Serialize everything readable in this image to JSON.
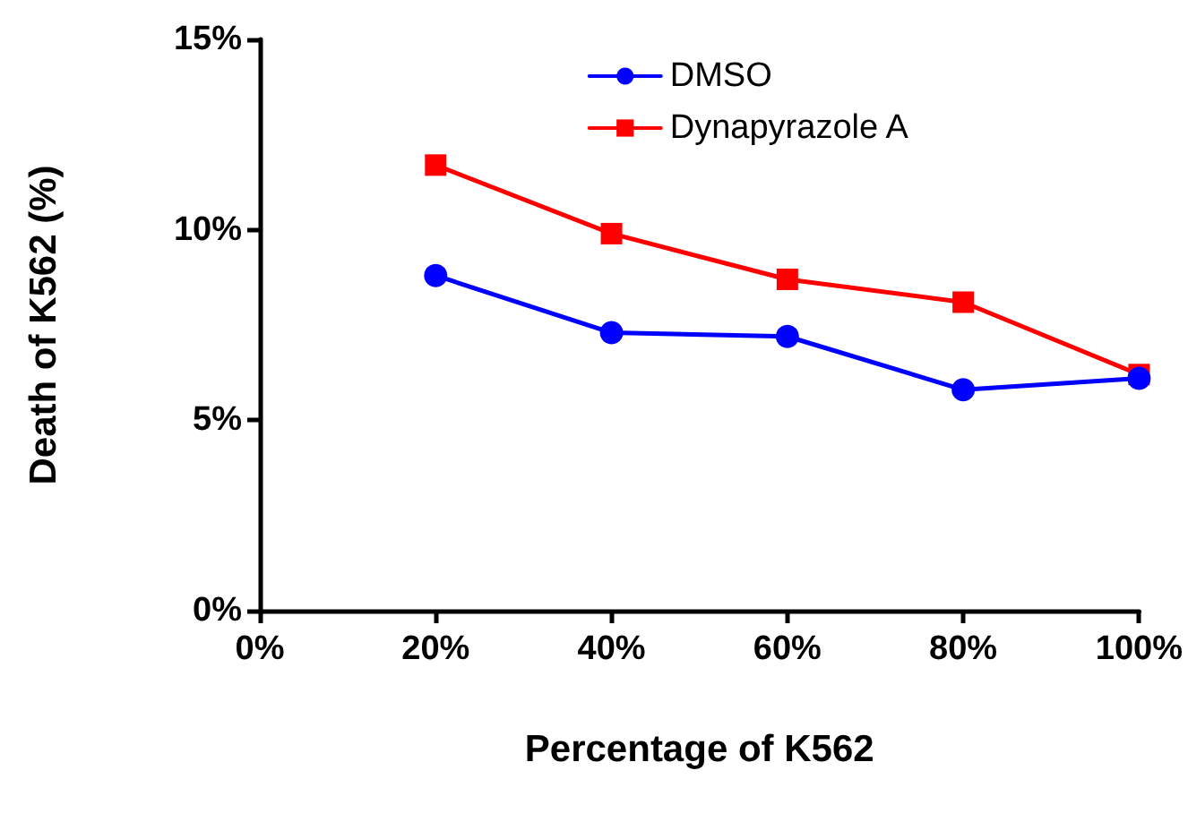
{
  "chart_data": {
    "type": "line",
    "xlabel": "Percentage of K562",
    "ylabel": "Death of K562 (%)",
    "x": [
      20,
      40,
      60,
      80,
      100
    ],
    "series": [
      {
        "name": "DMSO",
        "color": "#0000ff",
        "marker": "circle",
        "values": [
          8.8,
          7.3,
          7.2,
          5.8,
          6.1
        ]
      },
      {
        "name": "Dynapyrazole A",
        "color": "#ff0000",
        "marker": "square",
        "values": [
          11.7,
          9.9,
          8.7,
          8.1,
          6.2
        ]
      }
    ],
    "xlim": [
      0,
      100
    ],
    "xticks": [
      {
        "value": 0,
        "label": "0%"
      },
      {
        "value": 20,
        "label": "20%"
      },
      {
        "value": 40,
        "label": "40%"
      },
      {
        "value": 60,
        "label": "60%"
      },
      {
        "value": 80,
        "label": "80%"
      },
      {
        "value": 100,
        "label": "100%"
      }
    ],
    "ylim": [
      0,
      15
    ],
    "yticks": [
      {
        "value": 0,
        "label": "0%"
      },
      {
        "value": 5,
        "label": "5%"
      },
      {
        "value": 10,
        "label": "10%"
      },
      {
        "value": 15,
        "label": "15%"
      }
    ],
    "grid": false,
    "legend": "top right",
    "line_style": "solid"
  }
}
